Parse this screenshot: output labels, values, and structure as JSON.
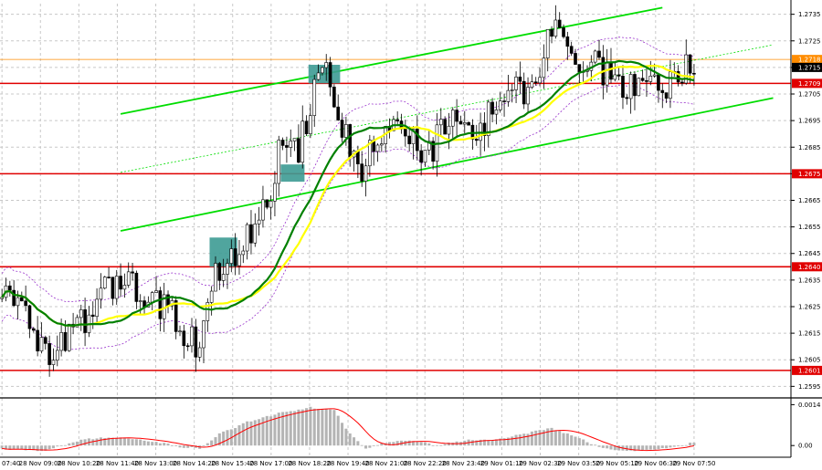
{
  "chart_data": {
    "type": "candlestick",
    "colors": {
      "background": "#ffffff",
      "candle": "#000000",
      "sma_fast": "#008000",
      "sma_slow": "#ffff00",
      "envelope": "#9933cc",
      "channel": "#00dd00",
      "level": "#e00000",
      "trade_box": "#3d9b94",
      "macd_hist": "#b4b4b4",
      "macd_signal": "#ff0000",
      "current_price": "#ff8c00"
    },
    "price_axis": {
      "ylim": [
        1.2591,
        1.2739
      ],
      "ticks": [
        "1.2735",
        "1.2725",
        "1.2715",
        "1.2705",
        "1.2695",
        "1.2685",
        "1.2675",
        "1.2665",
        "1.2655",
        "1.2645",
        "1.2635",
        "1.2625",
        "1.2615",
        "1.2605",
        "1.2595"
      ]
    },
    "time_axis": {
      "ticks": [
        "07:40",
        "28 Nov 09:00",
        "28 Nov 10:20",
        "28 Nov 11:40",
        "28 Nov 13:00",
        "28 Nov 14:20",
        "28 Nov 15:40",
        "28 Nov 17:00",
        "28 Nov 18:20",
        "28 Nov 19:40",
        "28 Nov 21:00",
        "28 Nov 22:20",
        "28 Nov 23:40",
        "29 Nov 01:10",
        "29 Nov 02:30",
        "29 Nov 03:50",
        "29 Nov 05:10",
        "29 Nov 06:30",
        "29 Nov 07:50"
      ],
      "bars": 200
    },
    "levels": [
      {
        "value": 1.2709,
        "label": "1.2709"
      },
      {
        "value": 1.2675,
        "label": "1.2675"
      },
      {
        "value": 1.264,
        "label": "1.2640"
      },
      {
        "value": 1.2601,
        "label": "1.2601"
      }
    ],
    "current_price": {
      "value": 1.2715,
      "label": "1.2715"
    },
    "ask_price": {
      "value": 1.2718,
      "label": "1.2718"
    },
    "channel_lines": [
      {
        "style": "solid",
        "from": {
          "bar": 30,
          "price": 1.26975
        },
        "to": {
          "bar": 167,
          "price": 1.27375
        }
      },
      {
        "style": "solid",
        "from": {
          "bar": 30,
          "price": 1.26535
        },
        "to": {
          "bar": 195,
          "price": 1.27035
        }
      },
      {
        "style": "dotted",
        "from": {
          "bar": 30,
          "price": 1.26755
        },
        "to": {
          "bar": 195,
          "price": 1.27235
        }
      }
    ],
    "trade_boxes": [
      {
        "bar_start": 53,
        "bar_end": 59,
        "price_top": 1.2651,
        "price_bottom": 1.264
      },
      {
        "bar_start": 71,
        "bar_end": 76,
        "price_top": 1.26785,
        "price_bottom": 1.2672
      },
      {
        "bar_start": 78,
        "bar_end": 85,
        "price_top": 1.2716,
        "price_bottom": 1.2709
      }
    ],
    "price_path": [
      [
        0,
        1.2628
      ],
      [
        3,
        1.263
      ],
      [
        6,
        1.262
      ],
      [
        9,
        1.2614
      ],
      [
        12,
        1.2609
      ],
      [
        15,
        1.2612
      ],
      [
        18,
        1.2618
      ],
      [
        21,
        1.2621
      ],
      [
        24,
        1.2627
      ],
      [
        27,
        1.2632
      ],
      [
        30,
        1.2636
      ],
      [
        33,
        1.2634
      ],
      [
        36,
        1.263
      ],
      [
        39,
        1.2627
      ],
      [
        42,
        1.2623
      ],
      [
        45,
        1.2618
      ],
      [
        48,
        1.2612
      ],
      [
        50,
        1.2608
      ],
      [
        52,
        1.2622
      ],
      [
        54,
        1.2637
      ],
      [
        57,
        1.2644
      ],
      [
        59,
        1.2639
      ],
      [
        62,
        1.2652
      ],
      [
        66,
        1.2662
      ],
      [
        68,
        1.2665
      ],
      [
        70,
        1.2682
      ],
      [
        73,
        1.269
      ],
      [
        75,
        1.2683
      ],
      [
        77,
        1.2696
      ],
      [
        80,
        1.271
      ],
      [
        83,
        1.2713
      ],
      [
        85,
        1.2699
      ],
      [
        87,
        1.2688
      ],
      [
        89,
        1.2683
      ],
      [
        91,
        1.2678
      ],
      [
        93,
        1.2682
      ],
      [
        96,
        1.2686
      ],
      [
        99,
        1.269
      ],
      [
        102,
        1.2694
      ],
      [
        105,
        1.2686
      ],
      [
        108,
        1.2683
      ],
      [
        111,
        1.269
      ],
      [
        114,
        1.2694
      ],
      [
        117,
        1.2692
      ],
      [
        120,
        1.2688
      ],
      [
        123,
        1.2697
      ],
      [
        126,
        1.2703
      ],
      [
        129,
        1.2708
      ],
      [
        132,
        1.2706
      ],
      [
        135,
        1.271
      ],
      [
        137,
        1.2718
      ],
      [
        139,
        1.2729
      ],
      [
        141,
        1.2726
      ],
      [
        143,
        1.2719
      ],
      [
        146,
        1.2716
      ],
      [
        149,
        1.2717
      ],
      [
        152,
        1.2713
      ],
      [
        155,
        1.271
      ],
      [
        158,
        1.2707
      ],
      [
        161,
        1.2712
      ],
      [
        164,
        1.271
      ],
      [
        167,
        1.2709
      ],
      [
        170,
        1.271
      ],
      [
        173,
        1.2715
      ],
      [
        175,
        1.2713
      ]
    ],
    "macd_axis": {
      "ylim": [
        -0.0004,
        0.0016
      ],
      "ticks": [
        "0.0014",
        "0.00"
      ]
    },
    "macd_hist_path": [
      [
        0,
        -0.0001
      ],
      [
        10,
        -0.0002
      ],
      [
        20,
        0.0002
      ],
      [
        30,
        0.0003
      ],
      [
        40,
        0.0001
      ],
      [
        45,
        -5e-05
      ],
      [
        50,
        -0.0001
      ],
      [
        55,
        0.0004
      ],
      [
        62,
        0.0008
      ],
      [
        70,
        0.0011
      ],
      [
        78,
        0.0013
      ],
      [
        84,
        0.0012
      ],
      [
        88,
        0.0004
      ],
      [
        92,
        -0.0001
      ],
      [
        97,
        0.0001
      ],
      [
        103,
        0.0002
      ],
      [
        110,
        0.0
      ],
      [
        118,
        0.0002
      ],
      [
        125,
        0.0002
      ],
      [
        132,
        0.0004
      ],
      [
        139,
        0.0006
      ],
      [
        145,
        0.0003
      ],
      [
        152,
        -0.0001
      ],
      [
        160,
        -0.0002
      ],
      [
        168,
        -0.0001
      ],
      [
        175,
        0.0001
      ]
    ]
  }
}
